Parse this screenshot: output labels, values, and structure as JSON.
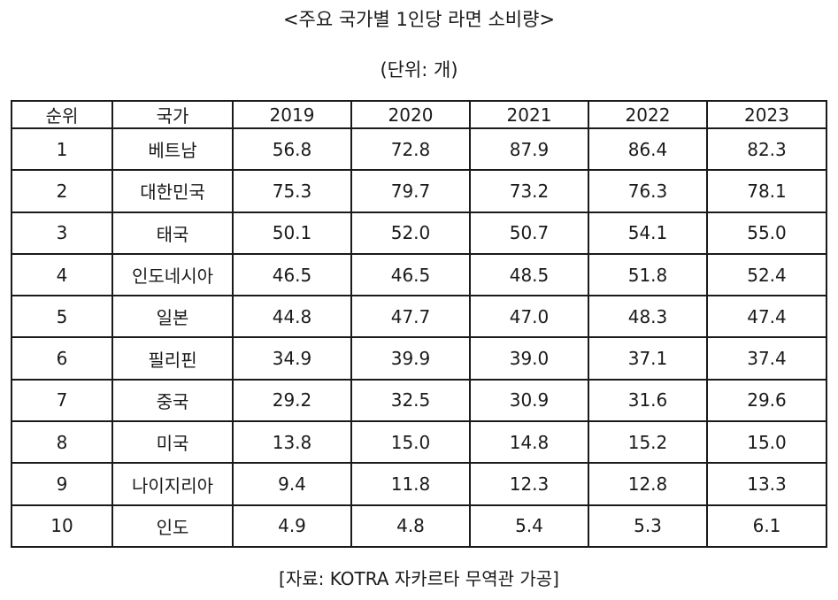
{
  "title": "<주요 국가별 1인당 라면 소비량>",
  "unit": "(단위: 개)",
  "table": {
    "headers": [
      "순위",
      "국가",
      "2019",
      "2020",
      "2021",
      "2022",
      "2023"
    ],
    "rows": [
      [
        "1",
        "베트남",
        "56.8",
        "72.8",
        "87.9",
        "86.4",
        "82.3"
      ],
      [
        "2",
        "대한민국",
        "75.3",
        "79.7",
        "73.2",
        "76.3",
        "78.1"
      ],
      [
        "3",
        "태국",
        "50.1",
        "52.0",
        "50.7",
        "54.1",
        "55.0"
      ],
      [
        "4",
        "인도네시아",
        "46.5",
        "46.5",
        "48.5",
        "51.8",
        "52.4"
      ],
      [
        "5",
        "일본",
        "44.8",
        "47.7",
        "47.0",
        "48.3",
        "47.4"
      ],
      [
        "6",
        "필리핀",
        "34.9",
        "39.9",
        "39.0",
        "37.1",
        "37.4"
      ],
      [
        "7",
        "중국",
        "29.2",
        "32.5",
        "30.9",
        "31.6",
        "29.6"
      ],
      [
        "8",
        "미국",
        "13.8",
        "15.0",
        "14.8",
        "15.2",
        "15.0"
      ],
      [
        "9",
        "나이지리아",
        "9.4",
        "11.8",
        "12.3",
        "12.8",
        "13.3"
      ],
      [
        "10",
        "인도",
        "4.9",
        "4.8",
        "5.4",
        "5.3",
        "6.1"
      ]
    ]
  },
  "source": "[자료: KOTRA 자카르타 무역관 가공]"
}
